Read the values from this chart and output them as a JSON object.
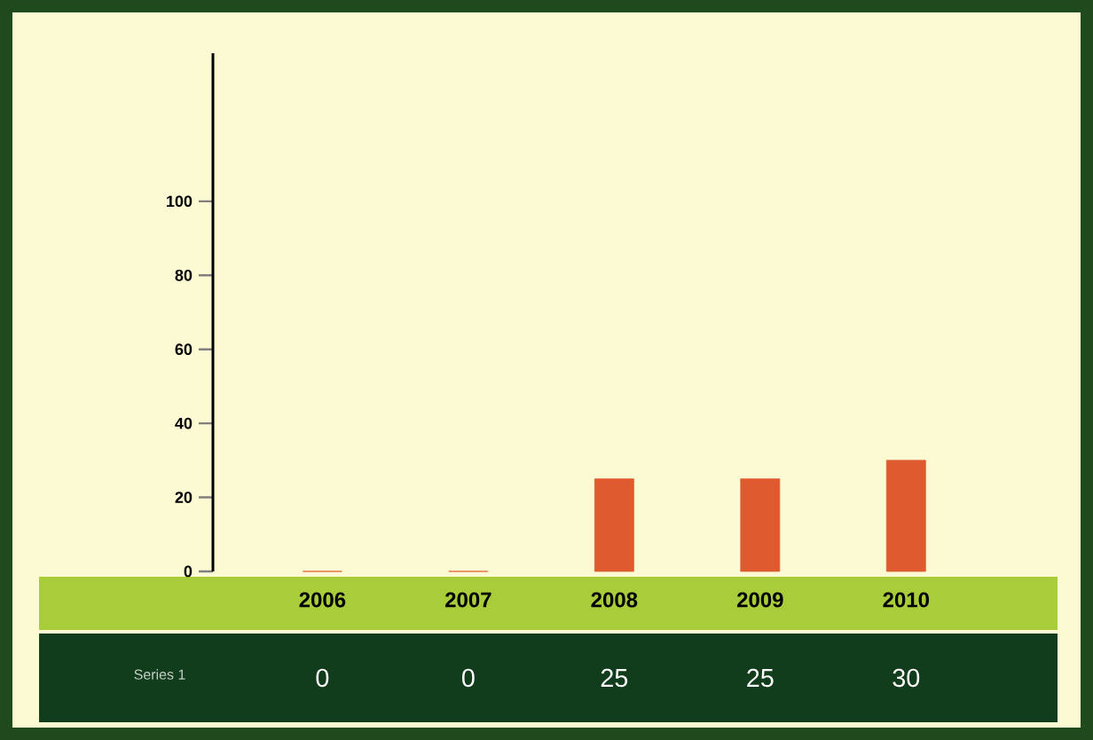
{
  "chart_data": {
    "type": "bar",
    "categories": [
      "2006",
      "2007",
      "2008",
      "2009",
      "2010"
    ],
    "series": [
      {
        "name": "Series 1",
        "color": "#e05a30",
        "values": [
          0,
          0,
          25,
          25,
          30
        ]
      }
    ],
    "ylim": [
      0,
      140
    ],
    "yticks": [
      0,
      20,
      40,
      60,
      80,
      100
    ],
    "data_labels": true,
    "grid": false
  }
}
